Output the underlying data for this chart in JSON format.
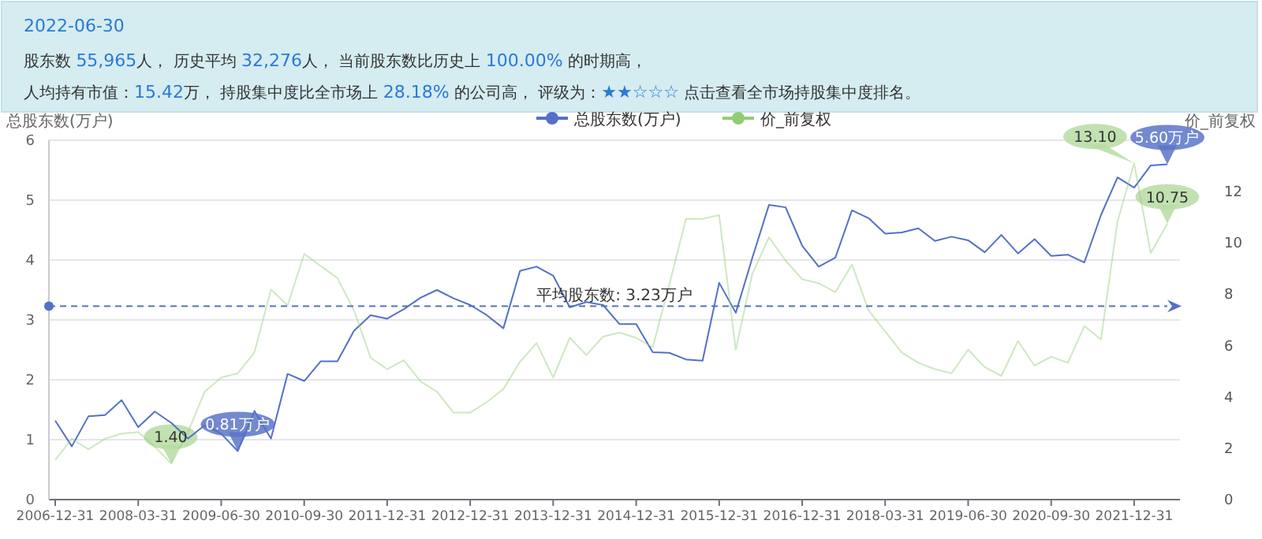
{
  "chart_data": [
    {
      "type": "other",
      "title": "2022-06-30",
      "annotations": [
        "股东数 55,965人， 历史平均 32,276人， 当前股东数比历史上 100.00% 的时期高，",
        "人均持有市值：15.42万， 持股集中度比全市场上 28.18% 的公司高， 评级为：★★☆☆☆ 点击查看全市场持股集中度排名。"
      ]
    },
    {
      "type": "line",
      "ylabel": "总股东数(万户)",
      "y2label": "价_前复权",
      "legend": "top",
      "grid": "y",
      "ylim": [
        0,
        6
      ],
      "yticks": [
        0,
        1,
        2,
        3,
        4,
        5,
        6
      ],
      "y2lim": [
        0,
        14
      ],
      "y2ticks": [
        0,
        2,
        4,
        6,
        8,
        10,
        12
      ],
      "categories": [
        "2006-12-31",
        null,
        null,
        null,
        null,
        "2008-03-31",
        null,
        null,
        null,
        null,
        "2009-06-30",
        null,
        null,
        null,
        null,
        "2010-09-30",
        null,
        null,
        null,
        null,
        "2011-12-31",
        null,
        null,
        null,
        null,
        "2012-12-31",
        null,
        null,
        null,
        null,
        "2013-12-31",
        null,
        null,
        null,
        null,
        "2014-12-31",
        null,
        null,
        null,
        null,
        "2015-12-31",
        null,
        null,
        null,
        null,
        "2016-12-31",
        null,
        null,
        null,
        null,
        "2018-03-31",
        null,
        null,
        null,
        null,
        "2019-06-30",
        null,
        null,
        null,
        null,
        "2020-09-30",
        null,
        null,
        null,
        null,
        "2021-12-31",
        null,
        null
      ],
      "series": [
        {
          "name": "总股东数(万户)",
          "color": "#5470c6",
          "values": [
            1.32,
            0.89,
            1.39,
            1.41,
            1.66,
            1.21,
            1.47,
            1.28,
            1.02,
            1.24,
            1.1,
            0.81,
            1.48,
            1.02,
            2.1,
            1.98,
            2.31,
            2.31,
            2.82,
            3.08,
            3.02,
            3.18,
            3.37,
            3.5,
            3.36,
            3.25,
            3.08,
            2.86,
            3.82,
            3.89,
            3.74,
            3.21,
            3.3,
            3.25,
            2.93,
            2.93,
            2.46,
            2.45,
            2.34,
            2.32,
            3.62,
            3.12,
            4.04,
            4.92,
            4.88,
            4.24,
            3.89,
            4.04,
            4.83,
            4.7,
            4.44,
            4.46,
            4.53,
            4.32,
            4.39,
            4.33,
            4.13,
            4.42,
            4.11,
            4.35,
            4.07,
            4.09,
            3.96,
            4.75,
            5.38,
            5.21,
            5.58,
            5.6
          ]
        },
        {
          "name": "价_前复权",
          "color": "#91cc75",
          "axis": "y2",
          "values": [
            1.55,
            2.37,
            1.96,
            2.37,
            2.57,
            2.63,
            2.06,
            1.4,
            2.63,
            4.2,
            4.76,
            4.92,
            5.73,
            8.18,
            7.57,
            9.57,
            9.1,
            8.63,
            7.37,
            5.53,
            5.08,
            5.43,
            4.61,
            4.2,
            3.39,
            3.39,
            3.8,
            4.31,
            5.37,
            6.1,
            4.76,
            6.31,
            5.63,
            6.35,
            6.51,
            6.3,
            5.94,
            8.39,
            10.94,
            10.94,
            11.08,
            5.84,
            8.8,
            10.22,
            9.31,
            8.59,
            8.43,
            8.08,
            9.16,
            7.37,
            6.55,
            5.73,
            5.33,
            5.08,
            4.92,
            5.84,
            5.16,
            4.82,
            6.18,
            5.22,
            5.57,
            5.33,
            6.76,
            6.24,
            10.84,
            13.1,
            9.61,
            10.75
          ]
        }
      ],
      "ref_lines": [
        {
          "axis": "y",
          "value": 3.23,
          "label": "平均股东数: 3.23万户",
          "color": "#5470c6",
          "line_style": "dashed"
        }
      ],
      "annotations": [
        "1.40",
        {
          "text": "0.81万户",
          "y": 0.81
        },
        "13.10",
        {
          "text": "5.60万户",
          "y": 5.6
        },
        "10.75"
      ]
    }
  ]
}
